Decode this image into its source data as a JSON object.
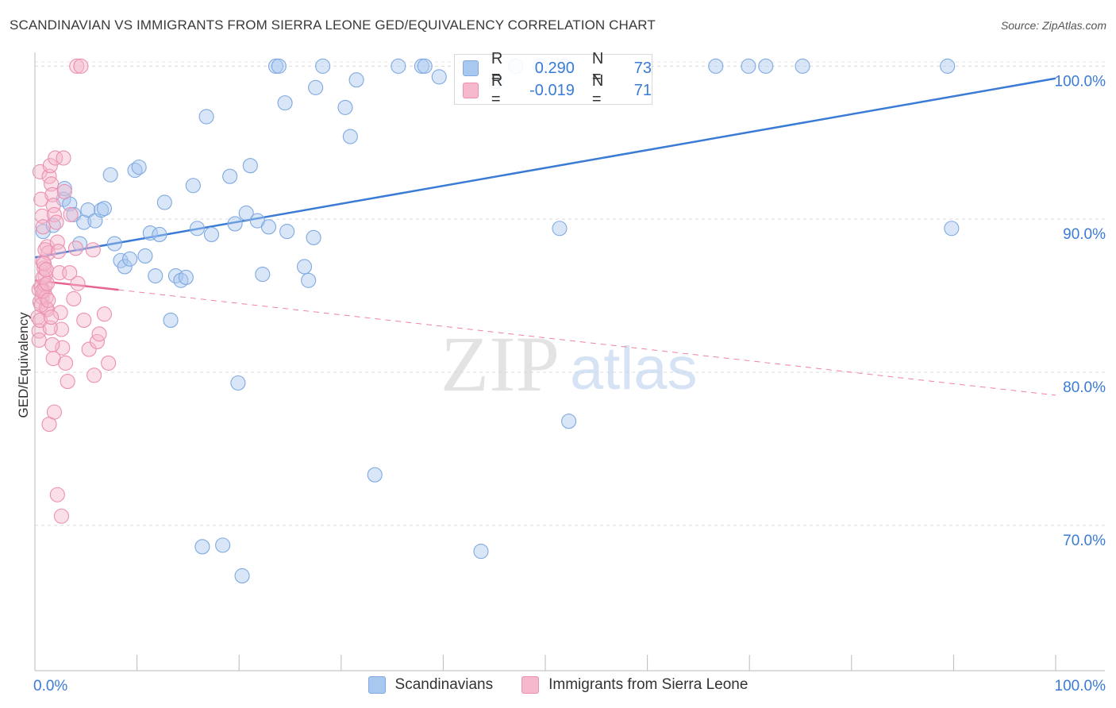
{
  "title": "SCANDINAVIAN VS IMMIGRANTS FROM SIERRA LEONE GED/EQUIVALENCY CORRELATION CHART",
  "source": "Source: ZipAtlas.com",
  "watermark": {
    "zip": "ZIP",
    "atlas": "atlas"
  },
  "legend_stats": [
    {
      "r_label": "R =",
      "r_value": "0.290",
      "n_label": "N =",
      "n_value": "73",
      "color": "#a8c8f0"
    },
    {
      "r_label": "R =",
      "r_value": "-0.019",
      "n_label": "N =",
      "n_value": "71",
      "color": "#f5b8cc"
    }
  ],
  "colors": {
    "blue": "#3a7bd5",
    "blue_fill": "#a8c8f0",
    "pink": "#e8648f",
    "pink_fill": "#f5b8cc",
    "grid": "#e0e0e0",
    "tick_text": "#3a7bd5"
  },
  "chart_data": {
    "type": "scatter",
    "title": "SCANDINAVIAN VS IMMIGRANTS FROM SIERRA LEONE GED/EQUIVALENCY CORRELATION CHART",
    "xlabel": "",
    "ylabel": "GED/Equivalency",
    "xlim": [
      0,
      100
    ],
    "ylim": [
      60.5,
      100.9
    ],
    "x_tick_labels": [
      {
        "value": 0,
        "label": "0.0%"
      },
      {
        "value": 100,
        "label": "100.0%"
      }
    ],
    "y_ticks": [
      {
        "value": 100,
        "label": "100.0%"
      },
      {
        "value": 90,
        "label": "90.0%"
      },
      {
        "value": 80,
        "label": "80.0%"
      },
      {
        "value": 70,
        "label": "70.0%"
      }
    ],
    "series": [
      {
        "name": "Scandinavians",
        "color": "#3a7bd5",
        "trend": {
          "x0": 0,
          "y0": 87.5,
          "x1": 100,
          "y1": 99.2
        },
        "points": [
          [
            0.8,
            89.2
          ],
          [
            1.8,
            89.6
          ],
          [
            2.8,
            91.3
          ],
          [
            2.9,
            92.0
          ],
          [
            3.4,
            91.0
          ],
          [
            3.8,
            90.3
          ],
          [
            4.4,
            88.4
          ],
          [
            4.8,
            89.8
          ],
          [
            5.2,
            90.6
          ],
          [
            5.9,
            89.9
          ],
          [
            6.5,
            90.6
          ],
          [
            6.8,
            90.7
          ],
          [
            7.4,
            92.9
          ],
          [
            7.8,
            88.4
          ],
          [
            8.4,
            87.3
          ],
          [
            8.8,
            86.9
          ],
          [
            9.3,
            87.4
          ],
          [
            9.8,
            93.2
          ],
          [
            10.2,
            93.4
          ],
          [
            10.8,
            87.6
          ],
          [
            11.3,
            89.1
          ],
          [
            11.8,
            86.3
          ],
          [
            12.2,
            89.0
          ],
          [
            12.7,
            91.1
          ],
          [
            13.3,
            83.4
          ],
          [
            13.8,
            86.3
          ],
          [
            14.3,
            86.0
          ],
          [
            14.8,
            86.2
          ],
          [
            15.5,
            92.2
          ],
          [
            15.9,
            89.4
          ],
          [
            16.4,
            68.6
          ],
          [
            16.8,
            96.7
          ],
          [
            17.3,
            89.0
          ],
          [
            18.4,
            68.7
          ],
          [
            19.1,
            92.8
          ],
          [
            19.6,
            89.7
          ],
          [
            19.9,
            79.3
          ],
          [
            20.3,
            66.7
          ],
          [
            20.7,
            90.4
          ],
          [
            21.1,
            93.5
          ],
          [
            21.8,
            89.9
          ],
          [
            22.3,
            86.4
          ],
          [
            22.9,
            89.5
          ],
          [
            23.6,
            100
          ],
          [
            23.9,
            100
          ],
          [
            24.5,
            97.6
          ],
          [
            24.7,
            89.2
          ],
          [
            26.4,
            86.9
          ],
          [
            26.8,
            86.0
          ],
          [
            27.3,
            88.8
          ],
          [
            27.5,
            98.6
          ],
          [
            28.2,
            100
          ],
          [
            30.4,
            97.3
          ],
          [
            30.9,
            95.4
          ],
          [
            31.5,
            99.1
          ],
          [
            33.3,
            73.3
          ],
          [
            35.6,
            100
          ],
          [
            37.9,
            100
          ],
          [
            38.2,
            100
          ],
          [
            39.6,
            99.3
          ],
          [
            43.7,
            68.3
          ],
          [
            45.2,
            99.0
          ],
          [
            47.1,
            100
          ],
          [
            49.5,
            100
          ],
          [
            51.9,
            100
          ],
          [
            51.4,
            89.4
          ],
          [
            52.3,
            76.8
          ],
          [
            66.7,
            100
          ],
          [
            69.9,
            100
          ],
          [
            71.6,
            100
          ],
          [
            75.2,
            100
          ],
          [
            89.4,
            100
          ],
          [
            89.8,
            89.4
          ]
        ]
      },
      {
        "name": "Immigrants from Sierra Leone",
        "color": "#e8648f",
        "trend": {
          "x0": 0,
          "y0": 86.0,
          "x1": 100,
          "y1": 78.5
        },
        "trend_solid_until": 8.2,
        "points": [
          [
            0.4,
            85.4
          ],
          [
            0.5,
            84.6
          ],
          [
            0.6,
            85.6
          ],
          [
            0.7,
            84.9
          ],
          [
            0.8,
            87.2
          ],
          [
            0.9,
            85.3
          ],
          [
            1.0,
            86.3
          ],
          [
            1.1,
            84.2
          ],
          [
            1.2,
            88.2
          ],
          [
            1.3,
            87.8
          ],
          [
            0.3,
            83.6
          ],
          [
            0.4,
            82.7
          ],
          [
            0.5,
            93.1
          ],
          [
            0.6,
            91.3
          ],
          [
            0.7,
            90.2
          ],
          [
            0.8,
            89.5
          ],
          [
            0.9,
            86.8
          ],
          [
            1.0,
            85.7
          ],
          [
            1.1,
            84.9
          ],
          [
            1.2,
            84.1
          ],
          [
            0.4,
            82.1
          ],
          [
            0.5,
            83.4
          ],
          [
            0.6,
            84.4
          ],
          [
            0.7,
            85.3
          ],
          [
            0.8,
            86.2
          ],
          [
            0.9,
            87.1
          ],
          [
            1.0,
            88.0
          ],
          [
            1.1,
            86.7
          ],
          [
            1.2,
            85.8
          ],
          [
            1.3,
            84.7
          ],
          [
            1.4,
            92.8
          ],
          [
            1.5,
            93.5
          ],
          [
            1.6,
            92.3
          ],
          [
            1.7,
            91.6
          ],
          [
            1.8,
            90.9
          ],
          [
            1.9,
            90.3
          ],
          [
            2.0,
            94.0
          ],
          [
            2.1,
            89.8
          ],
          [
            2.2,
            88.5
          ],
          [
            2.3,
            87.9
          ],
          [
            2.4,
            86.5
          ],
          [
            2.5,
            83.9
          ],
          [
            2.6,
            82.8
          ],
          [
            2.7,
            81.6
          ],
          [
            1.5,
            82.9
          ],
          [
            1.6,
            83.6
          ],
          [
            1.7,
            81.8
          ],
          [
            1.8,
            80.9
          ],
          [
            1.4,
            76.6
          ],
          [
            1.9,
            77.4
          ],
          [
            2.2,
            72.0
          ],
          [
            2.6,
            70.6
          ],
          [
            2.8,
            94.0
          ],
          [
            3.0,
            80.6
          ],
          [
            3.2,
            79.4
          ],
          [
            3.5,
            90.3
          ],
          [
            4.0,
            88.1
          ],
          [
            4.2,
            85.8
          ],
          [
            4.8,
            83.4
          ],
          [
            5.3,
            81.5
          ],
          [
            5.7,
            88.0
          ],
          [
            6.1,
            82.0
          ],
          [
            6.3,
            82.5
          ],
          [
            5.8,
            79.8
          ],
          [
            6.8,
            83.8
          ],
          [
            7.2,
            80.6
          ],
          [
            3.4,
            86.5
          ],
          [
            2.9,
            91.8
          ],
          [
            4.1,
            100
          ],
          [
            4.5,
            100
          ],
          [
            3.8,
            84.8
          ]
        ]
      }
    ]
  }
}
